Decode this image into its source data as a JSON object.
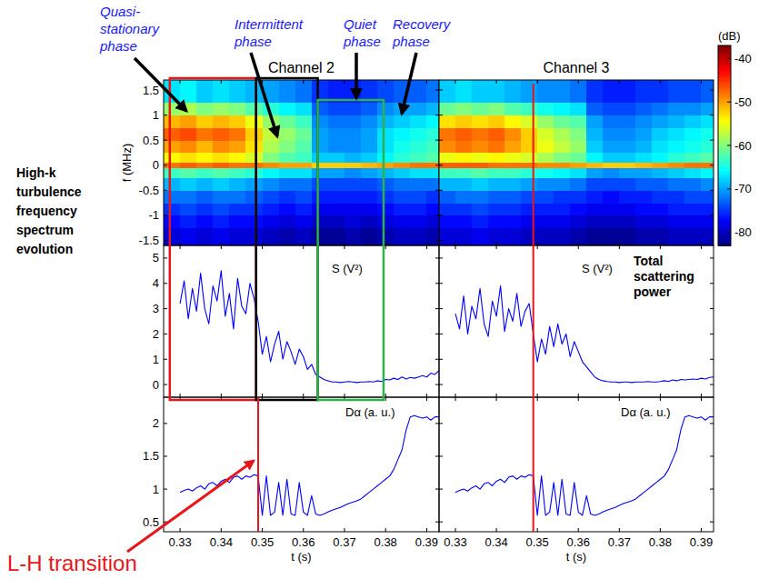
{
  "chart_data": [
    {
      "type": "heatmap",
      "title": "Channel 2",
      "y_label": "f (MHz)",
      "xlim": [
        0.326,
        0.393
      ],
      "ylim": [
        -1.6,
        1.7
      ],
      "xticks": [
        0.33,
        0.34,
        0.35,
        0.36,
        0.37,
        0.38,
        0.39
      ],
      "yticks": [
        -1.5,
        -1,
        -0.5,
        0,
        0.5,
        1,
        1.5
      ],
      "tick_labels": "y",
      "x_edges": [
        0.326,
        0.33,
        0.334,
        0.338,
        0.342,
        0.346,
        0.35,
        0.354,
        0.358,
        0.362,
        0.366,
        0.37,
        0.374,
        0.378,
        0.382,
        0.386,
        0.39,
        0.393
      ],
      "y_edges": [
        -1.6,
        -1.25,
        -1,
        -0.75,
        -0.5,
        -0.25,
        -0.05,
        0.05,
        0.25,
        0.5,
        0.75,
        1,
        1.25,
        1.7
      ],
      "cells": [
        [
          -79,
          -78,
          -79,
          -78,
          -79,
          -79,
          -80,
          -81,
          -80,
          -82,
          -82,
          -81,
          -82,
          -81,
          -80,
          -80,
          -81
        ],
        [
          -77,
          -76,
          -77,
          -76,
          -77,
          -77,
          -78,
          -79,
          -78,
          -80,
          -80,
          -79,
          -80,
          -79,
          -78,
          -78,
          -79
        ],
        [
          -75,
          -74,
          -75,
          -74,
          -75,
          -75,
          -76,
          -77,
          -76,
          -78,
          -78,
          -78,
          -78,
          -77,
          -76,
          -76,
          -77
        ],
        [
          -72,
          -72,
          -73,
          -72,
          -72,
          -73,
          -74,
          -75,
          -74,
          -76,
          -76,
          -76,
          -76,
          -75,
          -74,
          -74,
          -75
        ],
        [
          -69,
          -68,
          -69,
          -68,
          -69,
          -70,
          -71,
          -72,
          -72,
          -74,
          -74,
          -74,
          -74,
          -73,
          -72,
          -72,
          -72
        ],
        [
          -63,
          -62,
          -63,
          -62,
          -63,
          -64,
          -66,
          -67,
          -67,
          -70,
          -70,
          -71,
          -70,
          -69,
          -68,
          -67,
          -67
        ],
        [
          -48,
          -47,
          -48,
          -47,
          -48,
          -48,
          -49,
          -50,
          -50,
          -52,
          -52,
          -52,
          -51,
          -50,
          -49,
          -48,
          -48
        ],
        [
          -54,
          -53,
          -54,
          -53,
          -54,
          -56,
          -60,
          -62,
          -63,
          -68,
          -68,
          -69,
          -68,
          -66,
          -64,
          -63,
          -62
        ],
        [
          -50,
          -49,
          -51,
          -49,
          -50,
          -53,
          -58,
          -60,
          -62,
          -70,
          -71,
          -71,
          -70,
          -67,
          -65,
          -64,
          -63
        ],
        [
          -47,
          -46,
          -48,
          -47,
          -48,
          -52,
          -57,
          -59,
          -61,
          -70,
          -71,
          -71,
          -70,
          -67,
          -66,
          -65,
          -64
        ],
        [
          -51,
          -50,
          -52,
          -51,
          -52,
          -55,
          -59,
          -61,
          -63,
          -71,
          -72,
          -72,
          -71,
          -69,
          -68,
          -67,
          -66
        ],
        [
          -59,
          -58,
          -60,
          -59,
          -60,
          -62,
          -64,
          -66,
          -67,
          -73,
          -74,
          -74,
          -73,
          -71,
          -70,
          -70,
          -69
        ],
        [
          -67,
          -66,
          -68,
          -67,
          -68,
          -69,
          -70,
          -71,
          -72,
          -75,
          -76,
          -76,
          -75,
          -74,
          -73,
          -73,
          -72
        ]
      ]
    },
    {
      "type": "heatmap",
      "title": "Channel 3",
      "xlim": [
        0.326,
        0.393
      ],
      "ylim": [
        -1.6,
        1.7
      ],
      "xticks": [
        0.33,
        0.34,
        0.35,
        0.36,
        0.37,
        0.38,
        0.39
      ],
      "yticks": [
        -1.5,
        -1,
        -0.5,
        0,
        0.5,
        1,
        1.5
      ],
      "tick_labels": false,
      "x_edges": [
        0.326,
        0.33,
        0.334,
        0.338,
        0.342,
        0.346,
        0.35,
        0.354,
        0.358,
        0.362,
        0.366,
        0.37,
        0.374,
        0.378,
        0.382,
        0.386,
        0.39,
        0.393
      ],
      "y_edges": [
        -1.6,
        -1.25,
        -1,
        -0.75,
        -0.5,
        -0.25,
        -0.05,
        0.05,
        0.25,
        0.5,
        0.75,
        1,
        1.25,
        1.7
      ],
      "cells": [
        [
          -79,
          -79,
          -78,
          -79,
          -79,
          -80,
          -80,
          -80,
          -81,
          -82,
          -82,
          -82,
          -81,
          -81,
          -80,
          -80,
          -80
        ],
        [
          -77,
          -77,
          -76,
          -77,
          -77,
          -78,
          -78,
          -78,
          -79,
          -80,
          -80,
          -80,
          -79,
          -79,
          -78,
          -78,
          -78
        ],
        [
          -75,
          -75,
          -74,
          -75,
          -75,
          -76,
          -76,
          -76,
          -77,
          -78,
          -78,
          -78,
          -77,
          -77,
          -76,
          -76,
          -76
        ],
        [
          -73,
          -72,
          -72,
          -73,
          -73,
          -74,
          -74,
          -75,
          -75,
          -76,
          -77,
          -76,
          -76,
          -75,
          -75,
          -74,
          -74
        ],
        [
          -69,
          -69,
          -68,
          -69,
          -69,
          -70,
          -71,
          -71,
          -72,
          -74,
          -74,
          -74,
          -73,
          -73,
          -72,
          -72,
          -71
        ],
        [
          -63,
          -63,
          -62,
          -63,
          -63,
          -64,
          -65,
          -66,
          -67,
          -70,
          -71,
          -70,
          -70,
          -69,
          -68,
          -67,
          -66
        ],
        [
          -47,
          -47,
          -47,
          -48,
          -48,
          -48,
          -49,
          -49,
          -50,
          -51,
          -52,
          -52,
          -51,
          -50,
          -49,
          -48,
          -48
        ],
        [
          -55,
          -54,
          -55,
          -54,
          -55,
          -56,
          -58,
          -60,
          -61,
          -66,
          -68,
          -68,
          -67,
          -66,
          -64,
          -63,
          -62
        ],
        [
          -49,
          -48,
          -49,
          -48,
          -50,
          -52,
          -55,
          -57,
          -59,
          -68,
          -70,
          -70,
          -69,
          -67,
          -66,
          -65,
          -64
        ],
        [
          -48,
          -47,
          -48,
          -47,
          -49,
          -52,
          -56,
          -58,
          -60,
          -69,
          -71,
          -71,
          -70,
          -68,
          -67,
          -66,
          -65
        ],
        [
          -53,
          -52,
          -53,
          -52,
          -54,
          -56,
          -59,
          -61,
          -62,
          -70,
          -72,
          -72,
          -71,
          -70,
          -69,
          -68,
          -67
        ],
        [
          -61,
          -60,
          -61,
          -60,
          -62,
          -63,
          -65,
          -66,
          -67,
          -73,
          -74,
          -74,
          -73,
          -72,
          -71,
          -71,
          -70
        ],
        [
          -68,
          -67,
          -68,
          -68,
          -69,
          -70,
          -71,
          -71,
          -72,
          -75,
          -76,
          -76,
          -75,
          -75,
          -74,
          -74,
          -73
        ]
      ],
      "colorbar": {
        "label": "(dB)",
        "range": [
          -83,
          -37
        ],
        "ticks": [
          -40,
          -50,
          -60,
          -70,
          -80
        ]
      }
    },
    {
      "type": "line",
      "label": "S (V²)",
      "xlim": [
        0.326,
        0.393
      ],
      "ylim": [
        -0.5,
        5.5
      ],
      "xticks": [
        0.33,
        0.34,
        0.35,
        0.36,
        0.37,
        0.38,
        0.39
      ],
      "yticks": [
        0,
        1,
        2,
        3,
        4,
        5
      ],
      "tick_labels": "y",
      "color": "#0000ff",
      "x": [
        0.33,
        0.331,
        0.332,
        0.333,
        0.334,
        0.335,
        0.336,
        0.337,
        0.338,
        0.339,
        0.34,
        0.341,
        0.342,
        0.343,
        0.344,
        0.345,
        0.346,
        0.347,
        0.348,
        0.349,
        0.35,
        0.351,
        0.352,
        0.353,
        0.354,
        0.355,
        0.356,
        0.357,
        0.358,
        0.359,
        0.36,
        0.361,
        0.362,
        0.363,
        0.364,
        0.365,
        0.366,
        0.367,
        0.368,
        0.369,
        0.37,
        0.371,
        0.372,
        0.373,
        0.374,
        0.375,
        0.376,
        0.377,
        0.378,
        0.379,
        0.38,
        0.381,
        0.382,
        0.383,
        0.384,
        0.385,
        0.386,
        0.387,
        0.388,
        0.389,
        0.39,
        0.391,
        0.392,
        0.393
      ],
      "values": [
        3.2,
        4.1,
        2.6,
        3.8,
        2.9,
        4.4,
        3.0,
        2.4,
        3.9,
        3.3,
        4.5,
        2.7,
        3.6,
        2.2,
        4.2,
        3.1,
        2.8,
        4.0,
        3.4,
        2.5,
        1.2,
        1.9,
        0.9,
        1.6,
        2.1,
        1.0,
        1.7,
        1.3,
        0.8,
        1.4,
        1.1,
        0.6,
        0.8,
        0.4,
        0.3,
        0.2,
        0.15,
        0.1,
        0.1,
        0.08,
        0.1,
        0.12,
        0.1,
        0.08,
        0.1,
        0.1,
        0.12,
        0.1,
        0.15,
        0.12,
        0.2,
        0.18,
        0.25,
        0.2,
        0.3,
        0.22,
        0.28,
        0.25,
        0.3,
        0.35,
        0.3,
        0.45,
        0.4,
        0.55
      ]
    },
    {
      "type": "line",
      "label": "S (V²)",
      "annotation": "Total scattering power",
      "xlim": [
        0.326,
        0.393
      ],
      "ylim": [
        -0.5,
        5.5
      ],
      "xticks": [
        0.33,
        0.34,
        0.35,
        0.36,
        0.37,
        0.38,
        0.39
      ],
      "yticks": [
        0,
        1,
        2,
        3,
        4,
        5
      ],
      "tick_labels": false,
      "color": "#0000ff",
      "x": [
        0.33,
        0.331,
        0.332,
        0.333,
        0.334,
        0.335,
        0.336,
        0.337,
        0.338,
        0.339,
        0.34,
        0.341,
        0.342,
        0.343,
        0.344,
        0.345,
        0.346,
        0.347,
        0.348,
        0.349,
        0.35,
        0.351,
        0.352,
        0.353,
        0.354,
        0.355,
        0.356,
        0.357,
        0.358,
        0.359,
        0.36,
        0.361,
        0.362,
        0.363,
        0.364,
        0.365,
        0.366,
        0.367,
        0.368,
        0.369,
        0.37,
        0.371,
        0.372,
        0.373,
        0.374,
        0.375,
        0.376,
        0.377,
        0.378,
        0.379,
        0.38,
        0.381,
        0.382,
        0.383,
        0.384,
        0.385,
        0.386,
        0.387,
        0.388,
        0.389,
        0.39,
        0.391,
        0.392,
        0.393
      ],
      "values": [
        2.8,
        2.2,
        3.5,
        2.0,
        3.1,
        2.6,
        3.8,
        2.4,
        1.9,
        3.3,
        2.7,
        3.9,
        2.1,
        3.0,
        2.5,
        3.6,
        2.3,
        2.9,
        3.2,
        2.0,
        0.9,
        1.8,
        1.2,
        2.3,
        1.5,
        2.4,
        1.6,
        2.0,
        1.1,
        1.7,
        1.3,
        0.9,
        0.7,
        0.5,
        0.3,
        0.2,
        0.15,
        0.12,
        0.1,
        0.1,
        0.08,
        0.1,
        0.1,
        0.08,
        0.1,
        0.1,
        0.1,
        0.12,
        0.1,
        0.1,
        0.12,
        0.15,
        0.12,
        0.18,
        0.15,
        0.2,
        0.18,
        0.2,
        0.22,
        0.2,
        0.25,
        0.22,
        0.28,
        0.3
      ]
    },
    {
      "type": "line",
      "label": "Dα (a. u.)",
      "x_label": "t (s)",
      "xlim": [
        0.326,
        0.393
      ],
      "ylim": [
        0.35,
        2.4
      ],
      "xticks": [
        0.33,
        0.34,
        0.35,
        0.36,
        0.37,
        0.38,
        0.39
      ],
      "yticks": [
        0.5,
        1,
        1.5,
        2
      ],
      "tick_labels": true,
      "color": "#0000ff",
      "x": [
        0.33,
        0.331,
        0.332,
        0.333,
        0.334,
        0.335,
        0.336,
        0.337,
        0.338,
        0.339,
        0.34,
        0.341,
        0.342,
        0.343,
        0.344,
        0.345,
        0.346,
        0.347,
        0.348,
        0.349,
        0.35,
        0.351,
        0.352,
        0.353,
        0.354,
        0.355,
        0.356,
        0.357,
        0.358,
        0.359,
        0.36,
        0.361,
        0.362,
        0.363,
        0.364,
        0.365,
        0.366,
        0.367,
        0.368,
        0.369,
        0.37,
        0.371,
        0.372,
        0.373,
        0.374,
        0.375,
        0.376,
        0.377,
        0.378,
        0.379,
        0.38,
        0.381,
        0.382,
        0.383,
        0.384,
        0.385,
        0.386,
        0.387,
        0.388,
        0.389,
        0.39,
        0.391,
        0.392,
        0.393
      ],
      "values": [
        0.95,
        0.98,
        1.0,
        0.97,
        1.02,
        1.05,
        1.0,
        1.08,
        1.1,
        1.05,
        1.12,
        1.15,
        1.1,
        1.18,
        1.2,
        1.15,
        1.2,
        1.18,
        1.22,
        1.2,
        0.6,
        1.2,
        0.6,
        0.65,
        1.1,
        0.6,
        1.15,
        0.62,
        0.6,
        1.1,
        0.65,
        0.6,
        0.9,
        0.62,
        0.6,
        0.62,
        0.65,
        0.68,
        0.7,
        0.72,
        0.75,
        0.78,
        0.8,
        0.82,
        0.85,
        0.9,
        0.95,
        1.0,
        1.05,
        1.1,
        1.15,
        1.2,
        1.3,
        1.45,
        1.6,
        1.9,
        2.1,
        2.12,
        2.1,
        2.08,
        2.1,
        2.05,
        2.1,
        2.1
      ]
    },
    {
      "type": "line",
      "label": "Dα (a. u.)",
      "x_label": "t (s)",
      "xlim": [
        0.326,
        0.393
      ],
      "ylim": [
        0.35,
        2.4
      ],
      "xticks": [
        0.33,
        0.34,
        0.35,
        0.36,
        0.37,
        0.38,
        0.39
      ],
      "yticks": [
        0.5,
        1,
        1.5,
        2
      ],
      "tick_labels": "x",
      "color": "#0000ff",
      "x": [
        0.33,
        0.331,
        0.332,
        0.333,
        0.334,
        0.335,
        0.336,
        0.337,
        0.338,
        0.339,
        0.34,
        0.341,
        0.342,
        0.343,
        0.344,
        0.345,
        0.346,
        0.347,
        0.348,
        0.349,
        0.35,
        0.351,
        0.352,
        0.353,
        0.354,
        0.355,
        0.356,
        0.357,
        0.358,
        0.359,
        0.36,
        0.361,
        0.362,
        0.363,
        0.364,
        0.365,
        0.366,
        0.367,
        0.368,
        0.369,
        0.37,
        0.371,
        0.372,
        0.373,
        0.374,
        0.375,
        0.376,
        0.377,
        0.378,
        0.379,
        0.38,
        0.381,
        0.382,
        0.383,
        0.384,
        0.385,
        0.386,
        0.387,
        0.388,
        0.389,
        0.39,
        0.391,
        0.392,
        0.393
      ],
      "values": [
        0.95,
        0.98,
        1.0,
        0.97,
        1.02,
        1.05,
        1.0,
        1.08,
        1.1,
        1.05,
        1.12,
        1.15,
        1.1,
        1.18,
        1.2,
        1.15,
        1.2,
        1.18,
        1.22,
        1.2,
        0.6,
        1.2,
        0.6,
        0.65,
        1.1,
        0.6,
        1.15,
        0.62,
        0.6,
        1.1,
        0.65,
        0.6,
        0.9,
        0.62,
        0.6,
        0.62,
        0.65,
        0.68,
        0.7,
        0.72,
        0.75,
        0.78,
        0.8,
        0.82,
        0.85,
        0.9,
        0.95,
        1.0,
        1.05,
        1.1,
        1.15,
        1.2,
        1.3,
        1.45,
        1.6,
        1.9,
        2.1,
        2.12,
        2.1,
        2.08,
        2.1,
        2.05,
        2.1,
        2.1
      ]
    }
  ],
  "annotations": {
    "side_label": "High-k turbulence frequency spectrum evolution",
    "phases": [
      {
        "label": "Quasi-stationary phase",
        "t0": 0.3275,
        "t1": 0.3485,
        "color": "#e8161b"
      },
      {
        "label": "Intermittent phase",
        "t0": 0.3485,
        "t1": 0.3635,
        "color": "#000000"
      },
      {
        "label": "Quiet phase",
        "t0": 0.3635,
        "t1": 0.3795,
        "color": "#2db34a"
      },
      {
        "label": "Recovery phase"
      }
    ],
    "lh_transition": {
      "label": "L-H transition",
      "t": 0.349,
      "color": "#e8161b"
    }
  }
}
